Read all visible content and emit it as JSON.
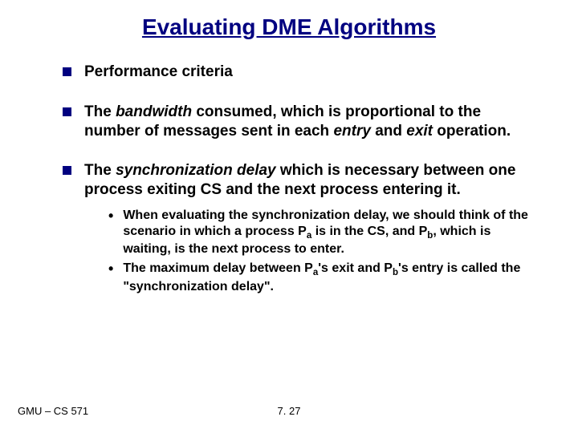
{
  "title": "Evaluating DME Algorithms",
  "bullets": {
    "b1": "Performance criteria",
    "b2_pre": "The ",
    "b2_em": "bandwidth",
    "b2_post": " consumed, which is proportional to the number of messages sent in each ",
    "b2_em2": "entry",
    "b2_mid": " and ",
    "b2_em3": "exit",
    "b2_end": " operation.",
    "b3_pre": "The ",
    "b3_em": "synchronization delay",
    "b3_post": " which is necessary between one process exiting CS and the next process entering it."
  },
  "subs": {
    "s1a": "When evaluating the synchronization delay, we should think of the scenario in which a process P",
    "s1b": " is in the CS, and P",
    "s1c": ", which is waiting, is the next process to enter.",
    "s2a": "The maximum delay between P",
    "s2b": "'s exit and P",
    "s2c": "'s entry is called the \"synchronization delay\".",
    "sub_a": "a",
    "sub_b": "b"
  },
  "footer": {
    "left": "GMU – CS 571",
    "center": "7. 27"
  },
  "colors": {
    "title": "#000080",
    "bullet": "#000080",
    "text": "#000000",
    "background": "#ffffff"
  }
}
